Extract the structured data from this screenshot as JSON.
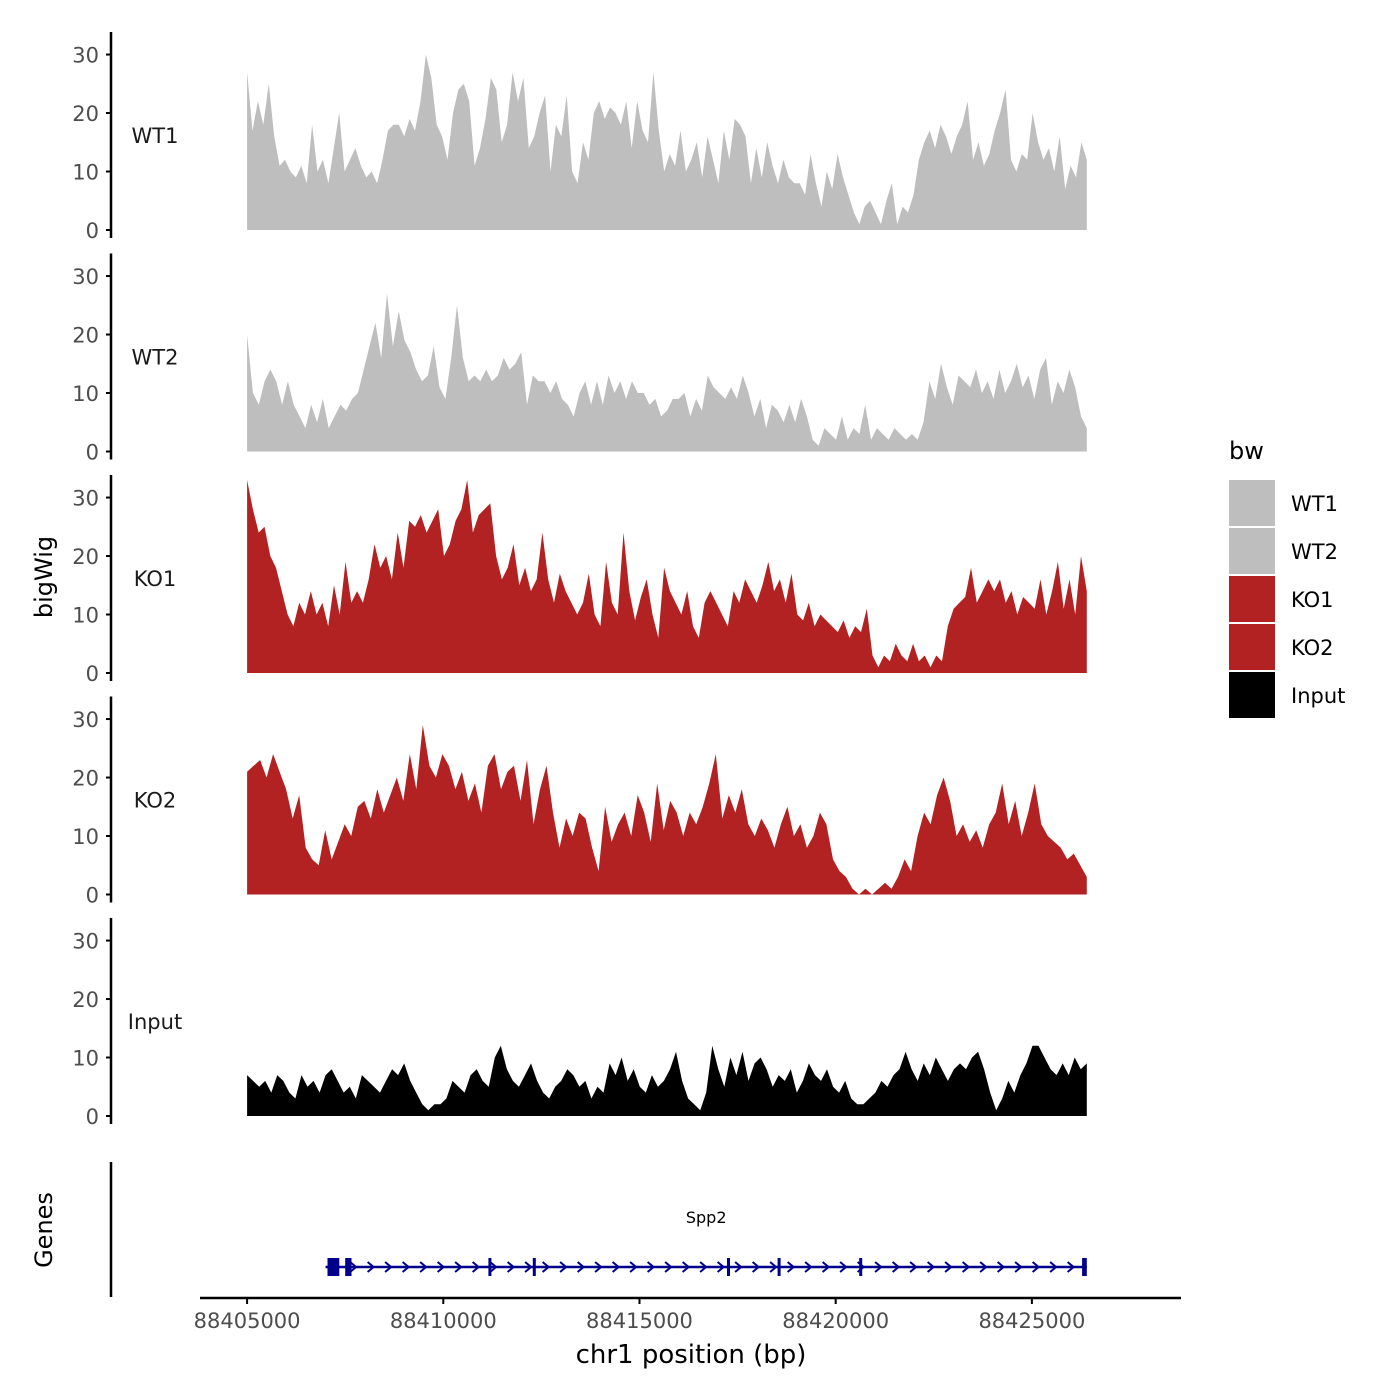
{
  "chart_data": {
    "type": "area",
    "ylabel": "bigWig",
    "xlabel": "chr1 position (bp)",
    "genes_label": "Genes",
    "ylim": [
      0,
      33
    ],
    "y_ticks": [
      "0",
      "10",
      "20",
      "30"
    ],
    "xlim": [
      88403800,
      88428800
    ],
    "x_ticks": [
      {
        "value": 88405000,
        "label": "88405000"
      },
      {
        "value": 88410000,
        "label": "88410000"
      },
      {
        "value": 88415000,
        "label": "88415000"
      },
      {
        "value": 88420000,
        "label": "88420000"
      },
      {
        "value": 88425000,
        "label": "88425000"
      }
    ],
    "x_start": 88405000,
    "x_end": 88426400,
    "legend": {
      "title": "bw",
      "entries": [
        {
          "label": "WT1",
          "color": "#bebebe"
        },
        {
          "label": "WT2",
          "color": "#bebebe"
        },
        {
          "label": "KO1",
          "color": "#b22222"
        },
        {
          "label": "KO2",
          "color": "#b22222"
        },
        {
          "label": "Input",
          "color": "#000000"
        }
      ]
    },
    "series": [
      {
        "name": "WT1",
        "color": "#bebebe",
        "values": [
          27,
          17,
          22,
          18,
          25,
          16,
          11,
          12,
          10,
          9,
          11,
          8,
          18,
          10,
          12,
          8,
          14,
          20,
          10,
          12,
          14,
          11,
          9,
          10,
          8,
          12,
          17,
          18,
          18,
          16,
          19,
          17,
          22,
          30,
          26,
          18,
          16,
          12,
          20,
          24,
          25,
          22,
          11,
          14,
          19,
          26,
          24,
          15,
          18,
          27,
          22,
          26,
          14,
          16,
          20,
          23,
          10,
          18,
          16,
          23,
          10,
          8,
          15,
          12,
          20,
          22,
          19,
          21,
          20,
          18,
          22,
          14,
          22,
          17,
          15,
          27,
          17,
          10,
          13,
          11,
          17,
          10,
          12,
          15,
          9,
          16,
          12,
          8,
          17,
          12,
          19,
          18,
          16,
          8,
          14,
          9,
          15,
          11,
          8,
          12,
          9,
          8,
          8,
          6,
          13,
          8,
          4,
          10,
          7,
          13,
          9,
          6,
          3,
          1,
          4,
          5,
          3,
          1,
          5,
          8,
          1,
          4,
          3,
          6,
          12,
          15,
          17,
          14,
          18,
          16,
          13,
          16,
          18,
          22,
          12,
          15,
          11,
          13,
          17,
          20,
          24,
          12,
          10,
          13,
          12,
          20,
          15,
          12,
          14,
          10,
          16,
          7,
          11,
          9,
          15,
          12
        ]
      },
      {
        "name": "WT2",
        "color": "#bebebe",
        "values": [
          20,
          10,
          8,
          12,
          14,
          12,
          8,
          12,
          8,
          6,
          4,
          8,
          5,
          9,
          4,
          6,
          8,
          7,
          9,
          10,
          14,
          18,
          22,
          16,
          27,
          18,
          24,
          19,
          17,
          14,
          12,
          13,
          18,
          11,
          9,
          16,
          25,
          16,
          12,
          13,
          12,
          14,
          12,
          13,
          16,
          14,
          15,
          17,
          8,
          13,
          12,
          12,
          10,
          12,
          9,
          8,
          6,
          10,
          12,
          8,
          12,
          8,
          13,
          10,
          12,
          9,
          12,
          10,
          10,
          8,
          9,
          6,
          7,
          9,
          9,
          10,
          6,
          9,
          7,
          13,
          11,
          10,
          9,
          11,
          9,
          13,
          10,
          6,
          9,
          4,
          8,
          7,
          5,
          8,
          5,
          9,
          6,
          2,
          1,
          4,
          3,
          2,
          6,
          2,
          4,
          3,
          8,
          2,
          4,
          3,
          2,
          4,
          3,
          2,
          3,
          2,
          5,
          12,
          9,
          15,
          11,
          8,
          13,
          12,
          11,
          14,
          10,
          12,
          9,
          14,
          10,
          12,
          15,
          11,
          13,
          9,
          14,
          16,
          8,
          12,
          10,
          14,
          11,
          6,
          4
        ]
      },
      {
        "name": "KO1",
        "color": "#b22222",
        "values": [
          33,
          28,
          24,
          25,
          20,
          18,
          14,
          10,
          8,
          12,
          10,
          14,
          10,
          12,
          8,
          15,
          10,
          19,
          12,
          14,
          12,
          16,
          22,
          18,
          20,
          16,
          24,
          18,
          26,
          25,
          27,
          24,
          26,
          28,
          20,
          22,
          26,
          28,
          33,
          24,
          27,
          28,
          29,
          20,
          16,
          18,
          22,
          15,
          18,
          14,
          16,
          24,
          16,
          12,
          17,
          14,
          12,
          10,
          12,
          17,
          10,
          8,
          19,
          12,
          10,
          24,
          14,
          9,
          13,
          16,
          10,
          6,
          18,
          14,
          12,
          10,
          14,
          8,
          6,
          12,
          14,
          12,
          10,
          8,
          14,
          12,
          16,
          14,
          12,
          15,
          19,
          14,
          16,
          12,
          17,
          10,
          9,
          12,
          8,
          10,
          9,
          8,
          7,
          9,
          6,
          8,
          7,
          11,
          3,
          1,
          3,
          2,
          5,
          3,
          2,
          5,
          2,
          3,
          1,
          3,
          2,
          8,
          11,
          12,
          13,
          18,
          12,
          14,
          16,
          14,
          16,
          12,
          14,
          10,
          13,
          12,
          11,
          16,
          10,
          14,
          19,
          11,
          16,
          10,
          20,
          14
        ]
      },
      {
        "name": "KO2",
        "color": "#b22222",
        "values": [
          21,
          22,
          23,
          20,
          24,
          21,
          18,
          13,
          17,
          8,
          6,
          5,
          11,
          6,
          9,
          12,
          10,
          15,
          16,
          13,
          18,
          14,
          17,
          20,
          16,
          24,
          18,
          29,
          22,
          20,
          24,
          22,
          18,
          21,
          16,
          19,
          14,
          22,
          24,
          18,
          21,
          22,
          16,
          23,
          12,
          18,
          22,
          14,
          8,
          13,
          10,
          14,
          13,
          8,
          4,
          15,
          9,
          12,
          14,
          10,
          17,
          14,
          9,
          19,
          11,
          16,
          14,
          10,
          14,
          12,
          15,
          19,
          24,
          13,
          17,
          14,
          18,
          12,
          10,
          13,
          11,
          8,
          12,
          15,
          10,
          12,
          8,
          10,
          14,
          12,
          6,
          4,
          3,
          1,
          0,
          1,
          0,
          1,
          2,
          1,
          3,
          6,
          4,
          10,
          14,
          12,
          17,
          20,
          16,
          10,
          12,
          9,
          11,
          8,
          12,
          14,
          19,
          12,
          16,
          10,
          14,
          19,
          12,
          10,
          9,
          8,
          6,
          7,
          5,
          3
        ]
      },
      {
        "name": "Input",
        "color": "#000000",
        "values": [
          7,
          6,
          5,
          6,
          4,
          7,
          6,
          4,
          3,
          7,
          5,
          6,
          4,
          7,
          8,
          6,
          4,
          5,
          3,
          7,
          6,
          5,
          4,
          6,
          8,
          7,
          9,
          6,
          4,
          2,
          1,
          2,
          2,
          3,
          6,
          5,
          4,
          7,
          8,
          6,
          5,
          10,
          12,
          8,
          6,
          5,
          7,
          9,
          6,
          4,
          3,
          5,
          6,
          8,
          7,
          5,
          6,
          3,
          5,
          4,
          9,
          7,
          10,
          6,
          8,
          5,
          4,
          7,
          5,
          6,
          8,
          11,
          6,
          3,
          2,
          1,
          4,
          12,
          8,
          5,
          10,
          7,
          11,
          6,
          9,
          10,
          8,
          5,
          7,
          6,
          8,
          4,
          6,
          9,
          7,
          6,
          8,
          5,
          4,
          6,
          3,
          2,
          2,
          3,
          4,
          6,
          5,
          7,
          8,
          11,
          8,
          6,
          9,
          7,
          10,
          8,
          6,
          8,
          9,
          8,
          10,
          11,
          8,
          4,
          1,
          3,
          6,
          4,
          7,
          9,
          12,
          12,
          10,
          8,
          7,
          9,
          7,
          10,
          8,
          9
        ]
      }
    ],
    "genes": [
      {
        "name": "Spp2",
        "start": 88407000,
        "end": 88426400,
        "color": "#00008b",
        "exons": [
          {
            "start": 88407050,
            "end": 88407350
          },
          {
            "start": 88407500,
            "end": 88407660
          },
          {
            "start": 88411150,
            "end": 88411190
          },
          {
            "start": 88412280,
            "end": 88412310
          },
          {
            "start": 88417230,
            "end": 88417270
          },
          {
            "start": 88418520,
            "end": 88418560
          },
          {
            "start": 88420600,
            "end": 88420660
          },
          {
            "start": 88426280,
            "end": 88426400
          }
        ]
      }
    ]
  }
}
